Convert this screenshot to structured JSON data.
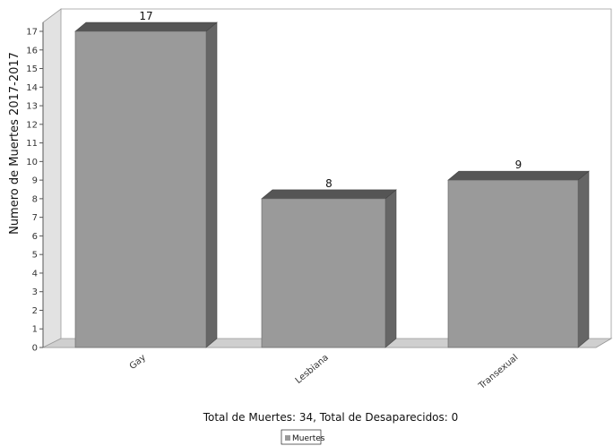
{
  "chart_data": {
    "type": "bar",
    "title": "",
    "categories": [
      "Gay",
      "Lesbiana",
      "Transexual"
    ],
    "series": [
      {
        "name": "Muertes",
        "values": [
          17,
          8,
          9
        ]
      }
    ],
    "ylabel": "Numero de Muertes 2017-2017",
    "xlabel": "Total de Muertes: 34, Total de Desaparecidos: 0",
    "ylim": [
      0,
      17
    ],
    "yticks": [
      0,
      1,
      2,
      3,
      4,
      5,
      6,
      7,
      8,
      9,
      10,
      11,
      12,
      13,
      14,
      15,
      16,
      17
    ],
    "grid": false,
    "legend_placement": "bottom",
    "bar_color": "#9a9a9a",
    "bar_side_color": "#666666",
    "bar_top_color": "#555555"
  }
}
